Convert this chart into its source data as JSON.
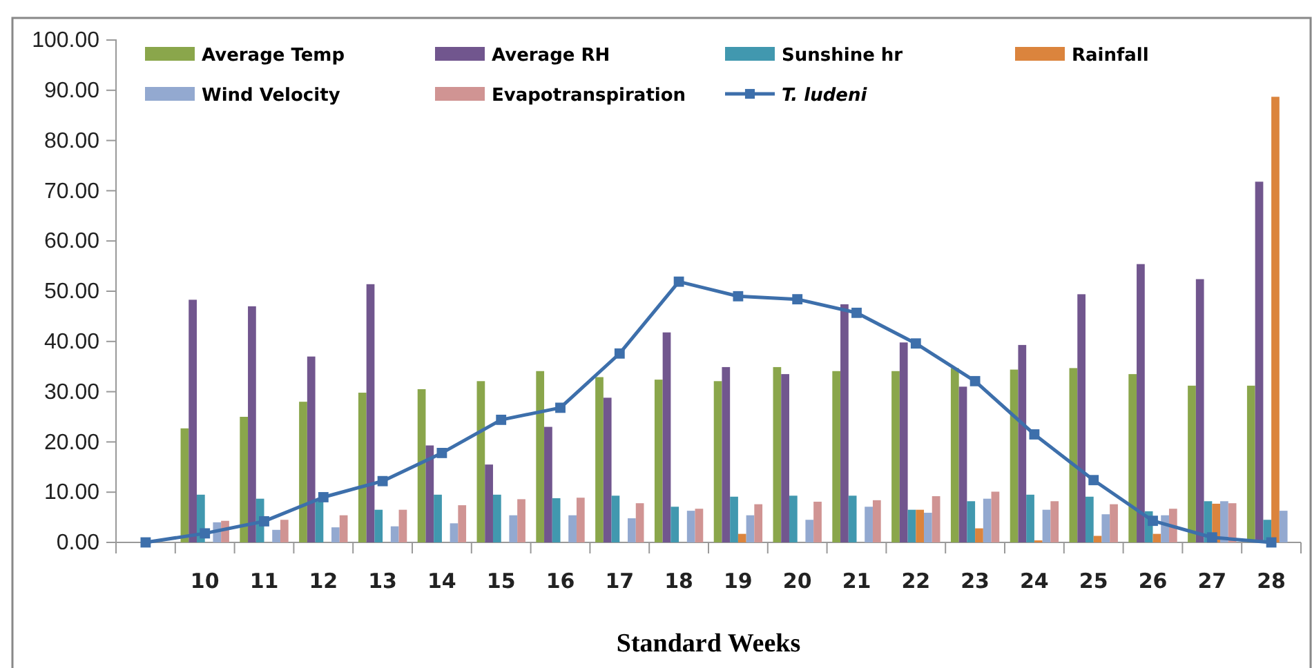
{
  "chart_data": {
    "type": "bar",
    "xlabel": "Standard Weeks",
    "categories": [
      null,
      "10",
      "11",
      "12",
      "13",
      "14",
      "15",
      "16",
      "17",
      "18",
      "19",
      "20",
      "21",
      "22",
      "23",
      "24",
      "25",
      "26",
      "27",
      "28"
    ],
    "series": [
      {
        "name": "Average Temp",
        "color": "#8aa64b",
        "values": [
          null,
          22.7,
          25,
          28,
          29.8,
          30.5,
          32.1,
          34.1,
          32.9,
          32.4,
          32.1,
          34.9,
          34.1,
          34.1,
          34.7,
          34.4,
          34.7,
          33.5,
          31.2,
          31.2
        ]
      },
      {
        "name": "Average RH",
        "color": "#71568e",
        "values": [
          null,
          48.3,
          47,
          37,
          51.4,
          19.3,
          15.5,
          23,
          28.8,
          41.8,
          34.9,
          33.5,
          47.4,
          39.8,
          31,
          39.3,
          49.4,
          55.4,
          52.4,
          71.8
        ]
      },
      {
        "name": "Sunshine hr",
        "color": "#4198af",
        "values": [
          null,
          9.5,
          8.7,
          8.5,
          6.5,
          9.5,
          9.5,
          8.8,
          9.3,
          7.1,
          9.1,
          9.3,
          9.3,
          6.5,
          8.2,
          9.5,
          9.1,
          6.2,
          8.2,
          4.5
        ]
      },
      {
        "name": "Rainfall",
        "color": "#db843d",
        "values": [
          null,
          0,
          0,
          0,
          0,
          0,
          0,
          0,
          0,
          0,
          1.7,
          0,
          0,
          6.5,
          2.8,
          0.4,
          1.3,
          1.7,
          7.7,
          88.7
        ]
      },
      {
        "name": "Wind Velocity",
        "color": "#93a9d0",
        "values": [
          null,
          4,
          2.5,
          3,
          3.2,
          3.8,
          5.4,
          5.4,
          4.8,
          6.3,
          5.4,
          4.5,
          7.1,
          5.9,
          8.7,
          6.5,
          5.6,
          5.4,
          8.2,
          6.3
        ]
      },
      {
        "name": "Evapotranspiration",
        "color": "#d09493",
        "values": [
          null,
          4.3,
          4.5,
          5.4,
          6.5,
          7.4,
          8.6,
          8.9,
          7.8,
          6.7,
          7.6,
          8.1,
          8.4,
          9.2,
          10.1,
          8.2,
          7.6,
          6.7,
          7.8,
          null
        ]
      },
      {
        "name": "T. ludeni",
        "type": "line",
        "color": "#3d6fab",
        "marker": "square",
        "values": [
          0,
          1.8,
          4.2,
          9,
          12.2,
          17.8,
          24.4,
          26.8,
          37.6,
          51.9,
          49,
          48.4,
          45.7,
          39.6,
          32.1,
          21.5,
          12.4,
          4.3,
          1,
          0
        ]
      }
    ],
    "ylim": [
      0,
      100
    ],
    "yticks": [
      {
        "value": 0,
        "label": "0.00"
      },
      {
        "value": 10,
        "label": "10.00"
      },
      {
        "value": 20,
        "label": "20.00"
      },
      {
        "value": 30,
        "label": "30.00"
      },
      {
        "value": 40,
        "label": "40.00"
      },
      {
        "value": 50,
        "label": "50.00"
      },
      {
        "value": 60,
        "label": "60.00"
      },
      {
        "value": 70,
        "label": "70.00"
      },
      {
        "value": 80,
        "label": "80.00"
      },
      {
        "value": 90,
        "label": "90.00"
      },
      {
        "value": 100,
        "label": "100.00"
      }
    ],
    "legend": "top"
  }
}
